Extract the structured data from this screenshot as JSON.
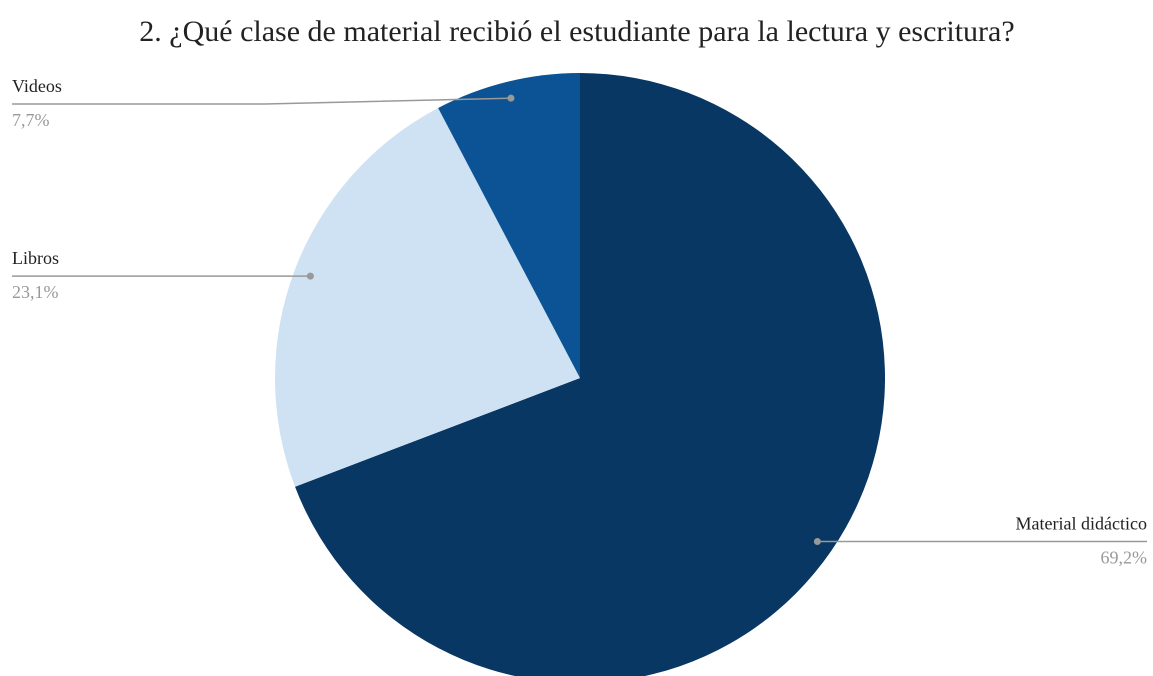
{
  "chart_data": {
    "type": "pie",
    "title": "2. ¿Qué clase de material recibió el estudiante para la lectura y escritura?",
    "categories": [
      "Material didáctico",
      "Libros",
      "Videos"
    ],
    "values": [
      69.2,
      23.1,
      7.7
    ],
    "value_labels": [
      "69,2%",
      "23,1%",
      "7,7%"
    ],
    "colors": [
      "#083763",
      "#cfe2f3",
      "#0b5394"
    ]
  }
}
